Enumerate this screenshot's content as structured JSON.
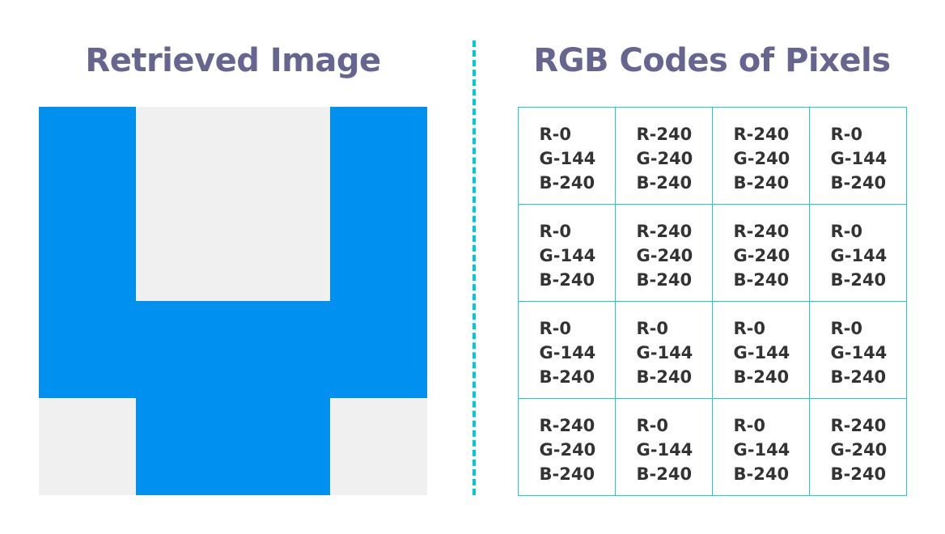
{
  "left_title": "Retrieved Image",
  "right_title": "RGB Codes of Pixels",
  "colors": {
    "blue": "#0090f0",
    "gray": "#f0f0f0",
    "title": "#65658f",
    "accent": "#00c8d6"
  },
  "pixels": [
    [
      {
        "r": 0,
        "g": 144,
        "b": 240
      },
      {
        "r": 240,
        "g": 240,
        "b": 240
      },
      {
        "r": 240,
        "g": 240,
        "b": 240
      },
      {
        "r": 0,
        "g": 144,
        "b": 240
      }
    ],
    [
      {
        "r": 0,
        "g": 144,
        "b": 240
      },
      {
        "r": 240,
        "g": 240,
        "b": 240
      },
      {
        "r": 240,
        "g": 240,
        "b": 240
      },
      {
        "r": 0,
        "g": 144,
        "b": 240
      }
    ],
    [
      {
        "r": 0,
        "g": 144,
        "b": 240
      },
      {
        "r": 0,
        "g": 144,
        "b": 240
      },
      {
        "r": 0,
        "g": 144,
        "b": 240
      },
      {
        "r": 0,
        "g": 144,
        "b": 240
      }
    ],
    [
      {
        "r": 240,
        "g": 240,
        "b": 240
      },
      {
        "r": 0,
        "g": 144,
        "b": 240
      },
      {
        "r": 0,
        "g": 144,
        "b": 240
      },
      {
        "r": 240,
        "g": 240,
        "b": 240
      }
    ]
  ]
}
